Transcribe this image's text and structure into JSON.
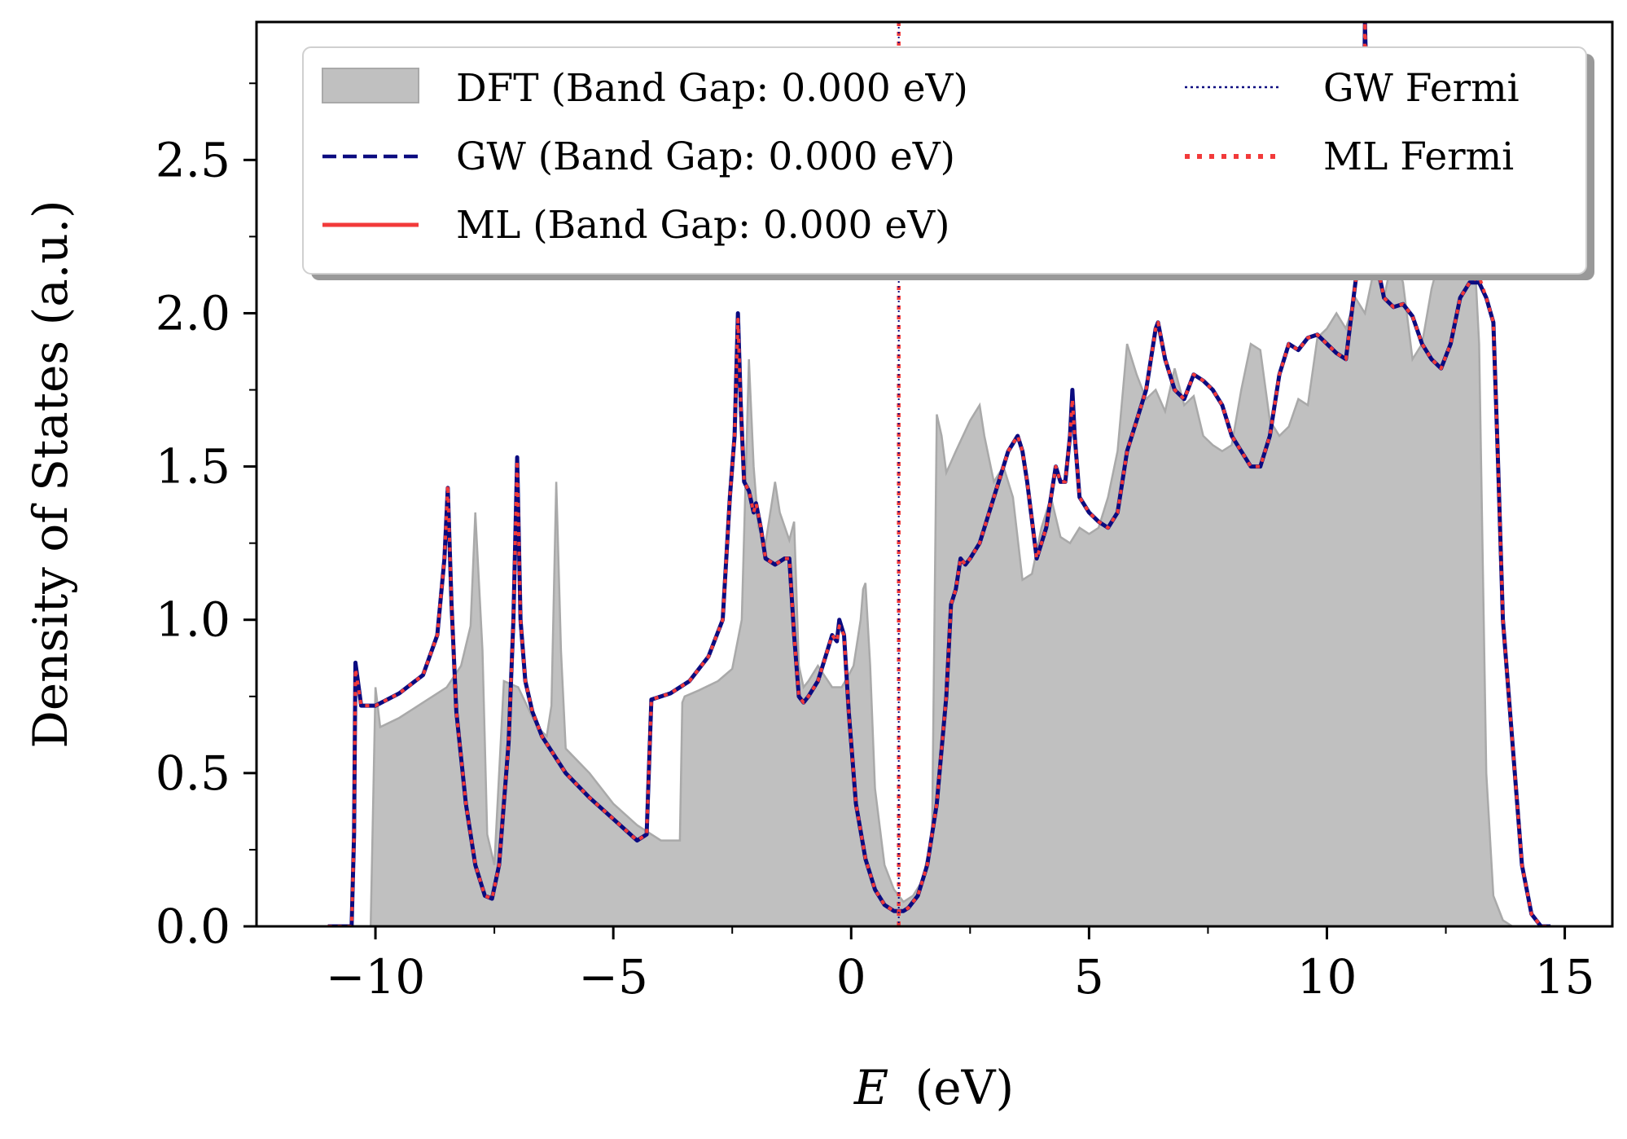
{
  "chart_data": {
    "type": "line",
    "xlabel": "E (eV)",
    "xlabel_var": "E",
    "xlabel_unit": "(eV)",
    "ylabel": "Density of States (a.u.)",
    "xlim": [
      -12.5,
      16.0
    ],
    "ylim": [
      0.0,
      2.95
    ],
    "x_ticks": [
      -10,
      -5,
      0,
      5,
      10,
      15
    ],
    "x_tick_labels": [
      "−10",
      "−5",
      "0",
      "5",
      "10",
      "15"
    ],
    "x_minor_ticks": [
      -7.5,
      -2.5,
      2.5,
      7.5,
      12.5
    ],
    "y_ticks": [
      0.0,
      0.5,
      1.0,
      1.5,
      2.0,
      2.5
    ],
    "y_tick_labels": [
      "0.0",
      "0.5",
      "1.0",
      "1.5",
      "2.0",
      "2.5"
    ],
    "y_minor_ticks": [
      0.25,
      0.75,
      1.25,
      1.75,
      2.25,
      2.75
    ],
    "legend_position": "top",
    "colors": {
      "dft_fill": "#c0c0c0",
      "dft_edge": "#a9a9a9",
      "gw": "#0b0b80",
      "ml": "#f23a3a"
    },
    "legend": [
      {
        "label": "DFT (Band Gap: 0.000 eV)",
        "style": "patch"
      },
      {
        "label": "GW (Band Gap: 0.000 eV)",
        "style": "dashed-navy"
      },
      {
        "label": "ML (Band Gap: 0.000 eV)",
        "style": "solid-red"
      },
      {
        "label": "GW Fermi",
        "style": "dotted-navy"
      },
      {
        "label": "ML Fermi",
        "style": "dotted-red"
      }
    ],
    "fermi_levels": {
      "gw": 1.0,
      "ml": 1.0
    },
    "series": [
      {
        "name": "DFT",
        "type": "area",
        "x": [
          -10.1,
          -10.0,
          -9.9,
          -9.5,
          -9.0,
          -8.5,
          -8.2,
          -8.0,
          -7.9,
          -7.75,
          -7.65,
          -7.5,
          -7.3,
          -7.0,
          -6.6,
          -6.4,
          -6.3,
          -6.2,
          -6.1,
          -6.0,
          -5.5,
          -5.0,
          -4.5,
          -4.0,
          -3.6,
          -3.55,
          -3.5,
          -3.2,
          -2.8,
          -2.5,
          -2.3,
          -2.15,
          -2.05,
          -1.95,
          -1.8,
          -1.6,
          -1.5,
          -1.3,
          -1.2,
          -1.1,
          -1.0,
          -0.9,
          -0.7,
          -0.4,
          -0.2,
          -0.05,
          0.05,
          0.2,
          0.25,
          0.3,
          0.4,
          0.5,
          0.7,
          0.9,
          1.1,
          1.3,
          1.5,
          1.7,
          1.8,
          1.9,
          2.0,
          2.2,
          2.5,
          2.7,
          2.8,
          3.0,
          3.2,
          3.4,
          3.6,
          3.8,
          4.0,
          4.2,
          4.4,
          4.6,
          4.8,
          5.0,
          5.2,
          5.4,
          5.6,
          5.8,
          6.0,
          6.2,
          6.4,
          6.6,
          6.8,
          7.0,
          7.2,
          7.4,
          7.6,
          7.8,
          8.0,
          8.2,
          8.4,
          8.6,
          8.8,
          9.0,
          9.2,
          9.4,
          9.6,
          9.8,
          10.0,
          10.2,
          10.4,
          10.6,
          10.8,
          11.0,
          11.2,
          11.4,
          11.6,
          11.8,
          12.0,
          12.2,
          12.4,
          12.6,
          12.8,
          13.0,
          13.2,
          13.35,
          13.5,
          13.7,
          13.9,
          14.0
        ],
        "y": [
          0.0,
          0.78,
          0.65,
          0.68,
          0.73,
          0.78,
          0.85,
          0.98,
          1.35,
          0.9,
          0.3,
          0.2,
          0.8,
          0.78,
          0.65,
          0.62,
          0.72,
          1.45,
          0.9,
          0.58,
          0.5,
          0.4,
          0.33,
          0.28,
          0.28,
          0.73,
          0.75,
          0.77,
          0.8,
          0.84,
          1.0,
          1.85,
          1.5,
          1.3,
          1.25,
          1.45,
          1.35,
          1.26,
          1.32,
          0.85,
          0.78,
          0.8,
          0.85,
          0.78,
          0.78,
          0.82,
          0.85,
          1.0,
          1.1,
          1.12,
          0.85,
          0.45,
          0.2,
          0.12,
          0.08,
          0.1,
          0.15,
          0.3,
          1.67,
          1.6,
          1.48,
          1.55,
          1.65,
          1.7,
          1.6,
          1.45,
          1.5,
          1.4,
          1.13,
          1.15,
          1.3,
          1.4,
          1.27,
          1.25,
          1.3,
          1.28,
          1.3,
          1.4,
          1.55,
          1.9,
          1.8,
          1.72,
          1.75,
          1.68,
          1.82,
          1.7,
          1.73,
          1.6,
          1.57,
          1.55,
          1.57,
          1.75,
          1.9,
          1.88,
          1.65,
          1.6,
          1.63,
          1.72,
          1.7,
          1.92,
          1.95,
          2.0,
          1.95,
          2.05,
          2.0,
          2.15,
          2.05,
          2.2,
          2.1,
          1.85,
          1.9,
          2.08,
          2.2,
          2.35,
          2.3,
          2.5,
          1.9,
          0.5,
          0.1,
          0.02,
          0.0,
          0.0
        ]
      },
      {
        "name": "GW",
        "type": "line",
        "x": [
          -11.0,
          -10.5,
          -10.45,
          -10.42,
          -10.3,
          -10.0,
          -9.5,
          -9.0,
          -8.7,
          -8.55,
          -8.48,
          -8.4,
          -8.3,
          -8.1,
          -7.9,
          -7.7,
          -7.55,
          -7.4,
          -7.2,
          -7.1,
          -7.02,
          -6.95,
          -6.85,
          -6.7,
          -6.5,
          -6.0,
          -5.5,
          -5.0,
          -4.5,
          -4.3,
          -4.2,
          -3.8,
          -3.4,
          -3.0,
          -2.7,
          -2.55,
          -2.45,
          -2.38,
          -2.32,
          -2.25,
          -2.15,
          -2.05,
          -2.0,
          -1.9,
          -1.8,
          -1.6,
          -1.4,
          -1.3,
          -1.2,
          -1.1,
          -1.0,
          -0.9,
          -0.7,
          -0.5,
          -0.4,
          -0.3,
          -0.25,
          -0.15,
          -0.05,
          0.1,
          0.3,
          0.5,
          0.7,
          0.9,
          1.0,
          1.1,
          1.2,
          1.4,
          1.6,
          1.8,
          2.0,
          2.1,
          2.2,
          2.3,
          2.4,
          2.5,
          2.7,
          2.9,
          3.1,
          3.3,
          3.5,
          3.6,
          3.7,
          3.9,
          4.1,
          4.3,
          4.4,
          4.5,
          4.6,
          4.65,
          4.7,
          4.8,
          5.0,
          5.2,
          5.4,
          5.6,
          5.8,
          6.0,
          6.2,
          6.4,
          6.45,
          6.6,
          6.8,
          7.0,
          7.2,
          7.4,
          7.6,
          7.8,
          8.0,
          8.2,
          8.4,
          8.6,
          8.8,
          9.0,
          9.2,
          9.4,
          9.6,
          9.8,
          10.0,
          10.2,
          10.4,
          10.6,
          10.75,
          10.8,
          10.9,
          11.0,
          11.2,
          11.4,
          11.6,
          11.8,
          12.0,
          12.2,
          12.4,
          12.6,
          12.8,
          13.0,
          13.2,
          13.35,
          13.5,
          13.6,
          13.7,
          13.9,
          14.1,
          14.3,
          14.5,
          14.7
        ],
        "y": [
          0.0,
          0.0,
          0.3,
          0.86,
          0.72,
          0.72,
          0.76,
          0.82,
          0.95,
          1.2,
          1.43,
          1.05,
          0.7,
          0.4,
          0.2,
          0.1,
          0.09,
          0.2,
          0.6,
          1.0,
          1.53,
          1.0,
          0.8,
          0.7,
          0.62,
          0.5,
          0.42,
          0.35,
          0.28,
          0.3,
          0.74,
          0.76,
          0.8,
          0.88,
          1.0,
          1.4,
          1.6,
          2.0,
          1.7,
          1.45,
          1.42,
          1.35,
          1.38,
          1.3,
          1.2,
          1.18,
          1.2,
          1.2,
          0.95,
          0.75,
          0.73,
          0.75,
          0.8,
          0.9,
          0.95,
          0.93,
          1.0,
          0.95,
          0.7,
          0.4,
          0.22,
          0.12,
          0.07,
          0.05,
          0.05,
          0.05,
          0.06,
          0.1,
          0.2,
          0.4,
          0.75,
          1.05,
          1.1,
          1.2,
          1.18,
          1.2,
          1.25,
          1.35,
          1.45,
          1.55,
          1.6,
          1.55,
          1.45,
          1.2,
          1.3,
          1.5,
          1.45,
          1.45,
          1.6,
          1.75,
          1.6,
          1.4,
          1.35,
          1.32,
          1.3,
          1.35,
          1.55,
          1.65,
          1.75,
          1.95,
          1.97,
          1.85,
          1.75,
          1.72,
          1.8,
          1.78,
          1.75,
          1.7,
          1.6,
          1.55,
          1.5,
          1.5,
          1.6,
          1.8,
          1.9,
          1.88,
          1.92,
          1.93,
          1.9,
          1.87,
          1.85,
          2.1,
          2.25,
          2.95,
          2.3,
          2.2,
          2.05,
          2.02,
          2.03,
          1.99,
          1.9,
          1.85,
          1.82,
          1.9,
          2.05,
          2.1,
          2.1,
          2.05,
          1.97,
          1.5,
          1.0,
          0.6,
          0.2,
          0.04,
          0.0,
          0.0
        ]
      },
      {
        "name": "ML",
        "type": "line",
        "x": [
          -11.0,
          -10.5,
          -10.45,
          -10.42,
          -10.3,
          -10.0,
          -9.5,
          -9.0,
          -8.7,
          -8.55,
          -8.48,
          -8.4,
          -8.3,
          -8.1,
          -7.9,
          -7.7,
          -7.55,
          -7.4,
          -7.2,
          -7.1,
          -7.02,
          -6.95,
          -6.85,
          -6.7,
          -6.5,
          -6.0,
          -5.5,
          -5.0,
          -4.5,
          -4.3,
          -4.2,
          -3.8,
          -3.4,
          -3.0,
          -2.7,
          -2.55,
          -2.45,
          -2.38,
          -2.32,
          -2.25,
          -2.15,
          -2.05,
          -2.0,
          -1.9,
          -1.8,
          -1.6,
          -1.4,
          -1.3,
          -1.2,
          -1.1,
          -1.0,
          -0.9,
          -0.7,
          -0.5,
          -0.4,
          -0.3,
          -0.25,
          -0.15,
          -0.05,
          0.1,
          0.3,
          0.5,
          0.7,
          0.9,
          1.0,
          1.1,
          1.2,
          1.4,
          1.6,
          1.8,
          2.0,
          2.1,
          2.2,
          2.3,
          2.4,
          2.5,
          2.7,
          2.9,
          3.1,
          3.3,
          3.5,
          3.6,
          3.7,
          3.9,
          4.1,
          4.3,
          4.4,
          4.5,
          4.6,
          4.65,
          4.7,
          4.8,
          5.0,
          5.2,
          5.4,
          5.6,
          5.8,
          6.0,
          6.2,
          6.4,
          6.45,
          6.6,
          6.8,
          7.0,
          7.2,
          7.4,
          7.6,
          7.8,
          8.0,
          8.2,
          8.4,
          8.6,
          8.8,
          9.0,
          9.2,
          9.4,
          9.6,
          9.8,
          10.0,
          10.2,
          10.4,
          10.6,
          10.75,
          10.8,
          10.9,
          11.0,
          11.2,
          11.4,
          11.6,
          11.8,
          12.0,
          12.2,
          12.4,
          12.6,
          12.8,
          13.0,
          13.2,
          13.35,
          13.5,
          13.6,
          13.7,
          13.9,
          14.1,
          14.3,
          14.5,
          14.7
        ],
        "y": [
          0.0,
          0.0,
          0.3,
          0.84,
          0.72,
          0.72,
          0.76,
          0.82,
          0.95,
          1.2,
          1.44,
          1.05,
          0.7,
          0.4,
          0.2,
          0.1,
          0.09,
          0.2,
          0.6,
          1.0,
          1.52,
          1.0,
          0.8,
          0.7,
          0.62,
          0.5,
          0.42,
          0.35,
          0.28,
          0.3,
          0.74,
          0.76,
          0.8,
          0.88,
          1.0,
          1.4,
          1.6,
          1.98,
          1.7,
          1.45,
          1.42,
          1.35,
          1.38,
          1.3,
          1.2,
          1.18,
          1.2,
          1.2,
          0.95,
          0.75,
          0.73,
          0.75,
          0.8,
          0.9,
          0.95,
          0.93,
          0.98,
          0.95,
          0.7,
          0.4,
          0.22,
          0.12,
          0.07,
          0.05,
          0.05,
          0.05,
          0.06,
          0.1,
          0.2,
          0.4,
          0.75,
          1.05,
          1.1,
          1.2,
          1.18,
          1.2,
          1.25,
          1.35,
          1.45,
          1.55,
          1.6,
          1.55,
          1.45,
          1.2,
          1.3,
          1.5,
          1.45,
          1.45,
          1.6,
          1.72,
          1.6,
          1.4,
          1.35,
          1.32,
          1.3,
          1.35,
          1.55,
          1.65,
          1.75,
          1.95,
          1.97,
          1.85,
          1.75,
          1.72,
          1.8,
          1.78,
          1.75,
          1.7,
          1.6,
          1.55,
          1.5,
          1.5,
          1.6,
          1.8,
          1.9,
          1.88,
          1.92,
          1.93,
          1.9,
          1.87,
          1.85,
          2.1,
          2.25,
          2.95,
          2.3,
          2.2,
          2.05,
          2.02,
          2.03,
          1.99,
          1.9,
          1.85,
          1.82,
          1.9,
          2.05,
          2.1,
          2.12,
          2.05,
          1.97,
          1.5,
          1.0,
          0.6,
          0.2,
          0.04,
          0.0,
          0.0
        ]
      }
    ]
  }
}
